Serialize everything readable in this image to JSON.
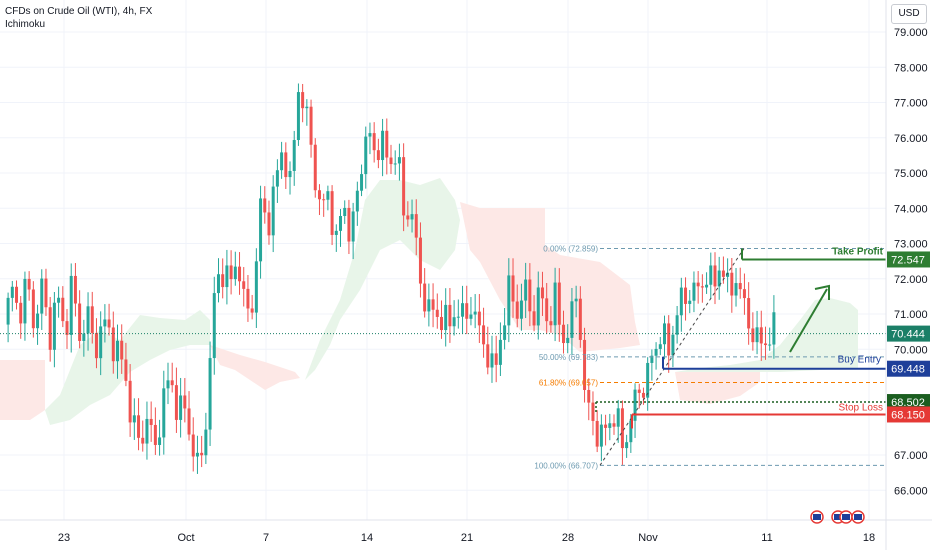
{
  "header": {
    "title": "CFDs on Crude Oil (WTI), 4h, FX",
    "indicator": "Ichimoku",
    "currency": "USD"
  },
  "chart_data": {
    "type": "candlestick",
    "instrument": "CFDs on Crude Oil (WTI)",
    "timeframe": "4h",
    "exchange": "FX",
    "y_ticks": [
      "79.000",
      "78.000",
      "77.000",
      "76.000",
      "75.000",
      "74.000",
      "73.000",
      "72.000",
      "71.000",
      "70.000",
      "67.000",
      "66.000"
    ],
    "ylim": [
      65.3,
      79.6
    ],
    "x_ticks": [
      "23",
      "Oct",
      "7",
      "14",
      "21",
      "28",
      "Nov",
      "11",
      "18"
    ],
    "price_path": [
      70.7,
      71.7,
      71.0,
      71.9,
      70.7,
      71.8,
      70.3,
      71.6,
      70.4,
      71.9,
      70.3,
      71.1,
      69.9,
      70.8,
      70.4,
      70.0,
      69.3,
      68.0,
      67.2,
      68.2,
      67.0,
      68.6,
      69.1,
      68.4,
      68.2,
      67.3,
      66.4,
      68.7,
      71.8,
      72.3,
      71.8,
      72.7,
      70.9,
      71.4,
      74.0,
      73.6,
      74.7,
      75.8,
      74.5,
      77.5,
      76.7,
      75.3,
      73.8,
      74.5,
      72.9,
      74.3,
      73.0,
      74.8,
      76.1,
      75.6,
      76.0,
      75.1,
      75.8,
      73.7,
      74.1,
      72.0,
      71.3,
      70.9,
      71.0,
      70.6,
      71.3,
      70.7,
      71.4,
      70.4,
      70.0,
      69.2,
      70.7,
      71.7,
      71.1,
      71.7,
      70.9,
      71.6,
      70.8,
      71.4,
      70.3,
      70.6,
      71.8,
      68.4,
      68.1,
      67.3,
      68.0,
      68.1,
      67.3,
      67.9,
      68.9,
      69.0,
      69.9,
      70.5,
      69.9,
      71.0,
      71.4,
      71.7,
      71.6,
      72.2,
      71.7,
      72.6,
      71.5,
      72.1,
      71.2,
      70.6,
      70.1,
      70.3,
      70.5
    ],
    "ichimoku_cloud": {
      "bullish_color": "#e8f5e9",
      "bearish_color": "#fde8e6"
    },
    "fibonacci": [
      {
        "label": "0.00% (72.859)",
        "value": 72.859
      },
      {
        "label": "50.00% (69.783)",
        "value": 69.783
      },
      {
        "label": "61.80% (69.057)",
        "value": 69.057
      },
      {
        "label": "100.00% (66.707)",
        "value": 66.707
      }
    ],
    "levels": [
      {
        "name": "Take Profit",
        "value": 72.547,
        "label": "72.547",
        "color": "#2e7d32"
      },
      {
        "name": "Buy Entry",
        "value": 69.448,
        "label": "69.448",
        "color": "#1e3f9a"
      },
      {
        "name": "Stop Loss",
        "value": 68.15,
        "label": "68.150",
        "color": "#e53935"
      }
    ],
    "current_price": {
      "value": 70.444,
      "label": "70.444",
      "color": "#1b7f67"
    },
    "dotted_level": {
      "value": 68.502,
      "label": "68.502",
      "color": "#1b5e20"
    }
  },
  "colors": {
    "up": "#26a69a",
    "down": "#ef5350",
    "grid": "#f0f3fa",
    "axis_text": "#131722"
  }
}
